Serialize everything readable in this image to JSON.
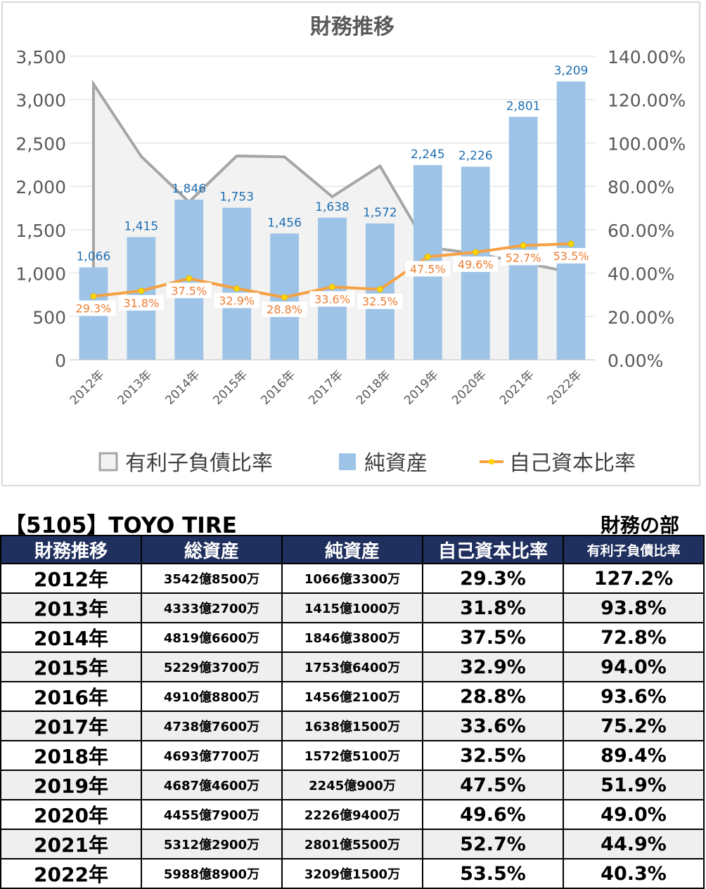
{
  "chart_data": {
    "type": "bar+line",
    "title": "財務推移",
    "categories": [
      "2012年",
      "2013年",
      "2014年",
      "2015年",
      "2016年",
      "2017年",
      "2018年",
      "2019年",
      "2020年",
      "2021年",
      "2022年"
    ],
    "series": [
      {
        "name": "有利子負債比率",
        "kind": "area",
        "axis": "right",
        "color": "#a6a6a6",
        "values": [
          127.2,
          93.8,
          72.8,
          94.0,
          93.6,
          75.2,
          89.4,
          51.9,
          49.0,
          44.9,
          40.3
        ]
      },
      {
        "name": "純資産",
        "kind": "bar",
        "axis": "left",
        "color": "#9dc3e6",
        "values": [
          1066,
          1415,
          1846,
          1753,
          1456,
          1638,
          1572,
          2245,
          2226,
          2801,
          3209
        ],
        "labels": [
          "1,066",
          "1,415",
          "1,846",
          "1,753",
          "1,456",
          "1,638",
          "1,572",
          "2,245",
          "2,226",
          "2,801",
          "3,209"
        ]
      },
      {
        "name": "自己資本比率",
        "kind": "line",
        "axis": "right",
        "color": "#f5a142",
        "values": [
          29.3,
          31.8,
          37.5,
          32.9,
          28.8,
          33.6,
          32.5,
          47.5,
          49.6,
          52.7,
          53.5
        ],
        "labels": [
          "29.3%",
          "31.8%",
          "37.5%",
          "32.9%",
          "28.8%",
          "33.6%",
          "32.5%",
          "47.5%",
          "49.6%",
          "52.7%",
          "53.5%"
        ]
      }
    ],
    "y_left": {
      "ylim": [
        0,
        3500
      ],
      "ticks": [
        "0",
        "500",
        "1,000",
        "1,500",
        "2,000",
        "2,500",
        "3,000",
        "3,500"
      ]
    },
    "y_right": {
      "ylim": [
        0,
        140
      ],
      "ticks": [
        "0.00%",
        "20.00%",
        "40.00%",
        "60.00%",
        "80.00%",
        "100.00%",
        "120.00%",
        "140.00%"
      ]
    },
    "legend_position": "bottom",
    "grid": true
  },
  "company_title": "【5105】TOYO TIRE",
  "section_label": "財務の部",
  "table": {
    "headers": [
      "財務推移",
      "総資産",
      "純資産",
      "自己資本比率",
      "有利子負債比率"
    ],
    "rows": [
      [
        "2012年",
        "3542億8500万",
        "1066億3300万",
        "29.3%",
        "127.2%"
      ],
      [
        "2013年",
        "4333億2700万",
        "1415億1000万",
        "31.8%",
        "93.8%"
      ],
      [
        "2014年",
        "4819億6600万",
        "1846億3800万",
        "37.5%",
        "72.8%"
      ],
      [
        "2015年",
        "5229億3700万",
        "1753億6400万",
        "32.9%",
        "94.0%"
      ],
      [
        "2016年",
        "4910億8800万",
        "1456億2100万",
        "28.8%",
        "93.6%"
      ],
      [
        "2017年",
        "4738億7600万",
        "1638億1500万",
        "33.6%",
        "75.2%"
      ],
      [
        "2018年",
        "4693億7700万",
        "1572億5100万",
        "32.5%",
        "89.4%"
      ],
      [
        "2019年",
        "4687億4600万",
        "2245億900万",
        "47.5%",
        "51.9%"
      ],
      [
        "2020年",
        "4455億7900万",
        "2226億9400万",
        "49.6%",
        "49.0%"
      ],
      [
        "2021年",
        "5312億2900万",
        "2801億5500万",
        "52.7%",
        "44.9%"
      ],
      [
        "2022年",
        "5988億8900万",
        "3209億1500万",
        "53.5%",
        "40.3%"
      ]
    ]
  }
}
